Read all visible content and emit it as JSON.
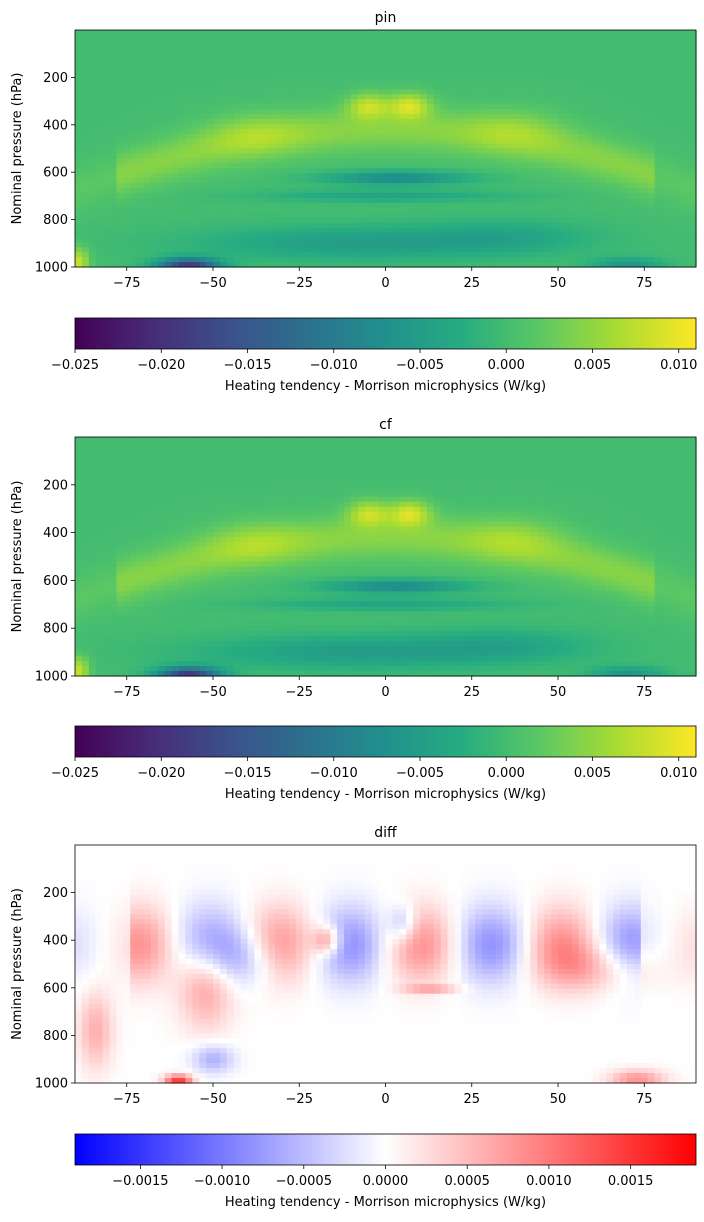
{
  "chart_data": [
    {
      "type": "heatmap",
      "title": "pin",
      "xlabel": "",
      "ylabel": "Nominal pressure (hPa)",
      "xlim": [
        -90,
        90
      ],
      "ylim": [
        0,
        1000
      ],
      "y_inverted": true,
      "xticks": [
        -75,
        -50,
        -25,
        0,
        25,
        50,
        75
      ],
      "yticks": [
        200,
        400,
        600,
        800,
        1000
      ],
      "colormap": "viridis",
      "vlim": [
        -0.025,
        0.011
      ],
      "colorbar": {
        "label": "Heating tendency - Morrison microphysics (W/kg)",
        "orientation": "horizontal",
        "ticks": [
          "-0.025",
          "-0.020",
          "-0.015",
          "-0.010",
          "-0.005",
          "0.000",
          "0.005",
          "0.010"
        ],
        "tick_values": [
          -0.025,
          -0.02,
          -0.015,
          -0.01,
          -0.005,
          0.0,
          0.005,
          0.01
        ]
      }
    },
    {
      "type": "heatmap",
      "title": "cf",
      "xlabel": "",
      "ylabel": "Nominal pressure (hPa)",
      "xlim": [
        -90,
        90
      ],
      "ylim": [
        0,
        1000
      ],
      "y_inverted": true,
      "xticks": [
        -75,
        -50,
        -25,
        0,
        25,
        50,
        75
      ],
      "yticks": [
        200,
        400,
        600,
        800,
        1000
      ],
      "colormap": "viridis",
      "vlim": [
        -0.025,
        0.011
      ],
      "colorbar": {
        "label": "Heating tendency - Morrison microphysics (W/kg)",
        "orientation": "horizontal",
        "ticks": [
          "-0.025",
          "-0.020",
          "-0.015",
          "-0.010",
          "-0.005",
          "0.000",
          "0.005",
          "0.010"
        ],
        "tick_values": [
          -0.025,
          -0.02,
          -0.015,
          -0.01,
          -0.005,
          0.0,
          0.005,
          0.01
        ]
      }
    },
    {
      "type": "heatmap",
      "title": "diff",
      "xlabel": "",
      "ylabel": "Nominal pressure (hPa)",
      "xlim": [
        -90,
        90
      ],
      "ylim": [
        0,
        1000
      ],
      "y_inverted": true,
      "xticks": [
        -75,
        -50,
        -25,
        0,
        25,
        50,
        75
      ],
      "yticks": [
        200,
        400,
        600,
        800,
        1000
      ],
      "colormap": "bwr",
      "vlim": [
        -0.0019,
        0.0019
      ],
      "colorbar": {
        "label": "Heating tendency - Morrison microphysics (W/kg)",
        "orientation": "horizontal",
        "ticks": [
          "-0.0015",
          "-0.0010",
          "-0.0005",
          "0.0000",
          "0.0005",
          "0.0010",
          "0.0015"
        ],
        "tick_values": [
          -0.0015,
          -0.001,
          -0.0005,
          0.0,
          0.0005,
          0.001,
          0.0015
        ]
      }
    }
  ]
}
